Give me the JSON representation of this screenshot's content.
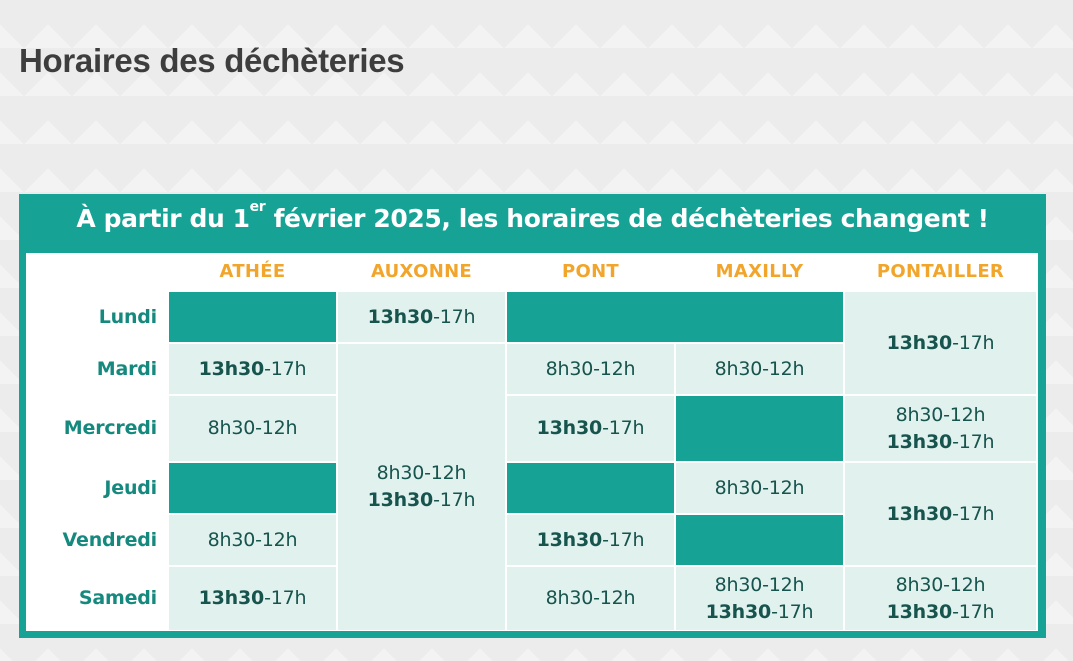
{
  "page_title": "Horaires des déchèteries",
  "banner": {
    "before_sup": "À partir du 1",
    "sup": "er",
    "after_sup": " février 2025, les horaires de déchèteries changent !"
  },
  "columns": [
    "ATHÉE",
    "AUXONNE",
    "PONT",
    "MAXILLY",
    "PONTAILLER"
  ],
  "days": [
    "Lundi",
    "Mardi",
    "Mercredi",
    "Jeudi",
    "Vendredi",
    "Samedi"
  ],
  "hours": {
    "afternoon_start": "13h30",
    "afternoon_end": "-17h",
    "morning": "8h30-12h"
  },
  "colors": {
    "teal": "#16a396",
    "light_cell": "#e1f1ee",
    "header_orange": "#f2a52b",
    "day_label": "#16897f"
  }
}
